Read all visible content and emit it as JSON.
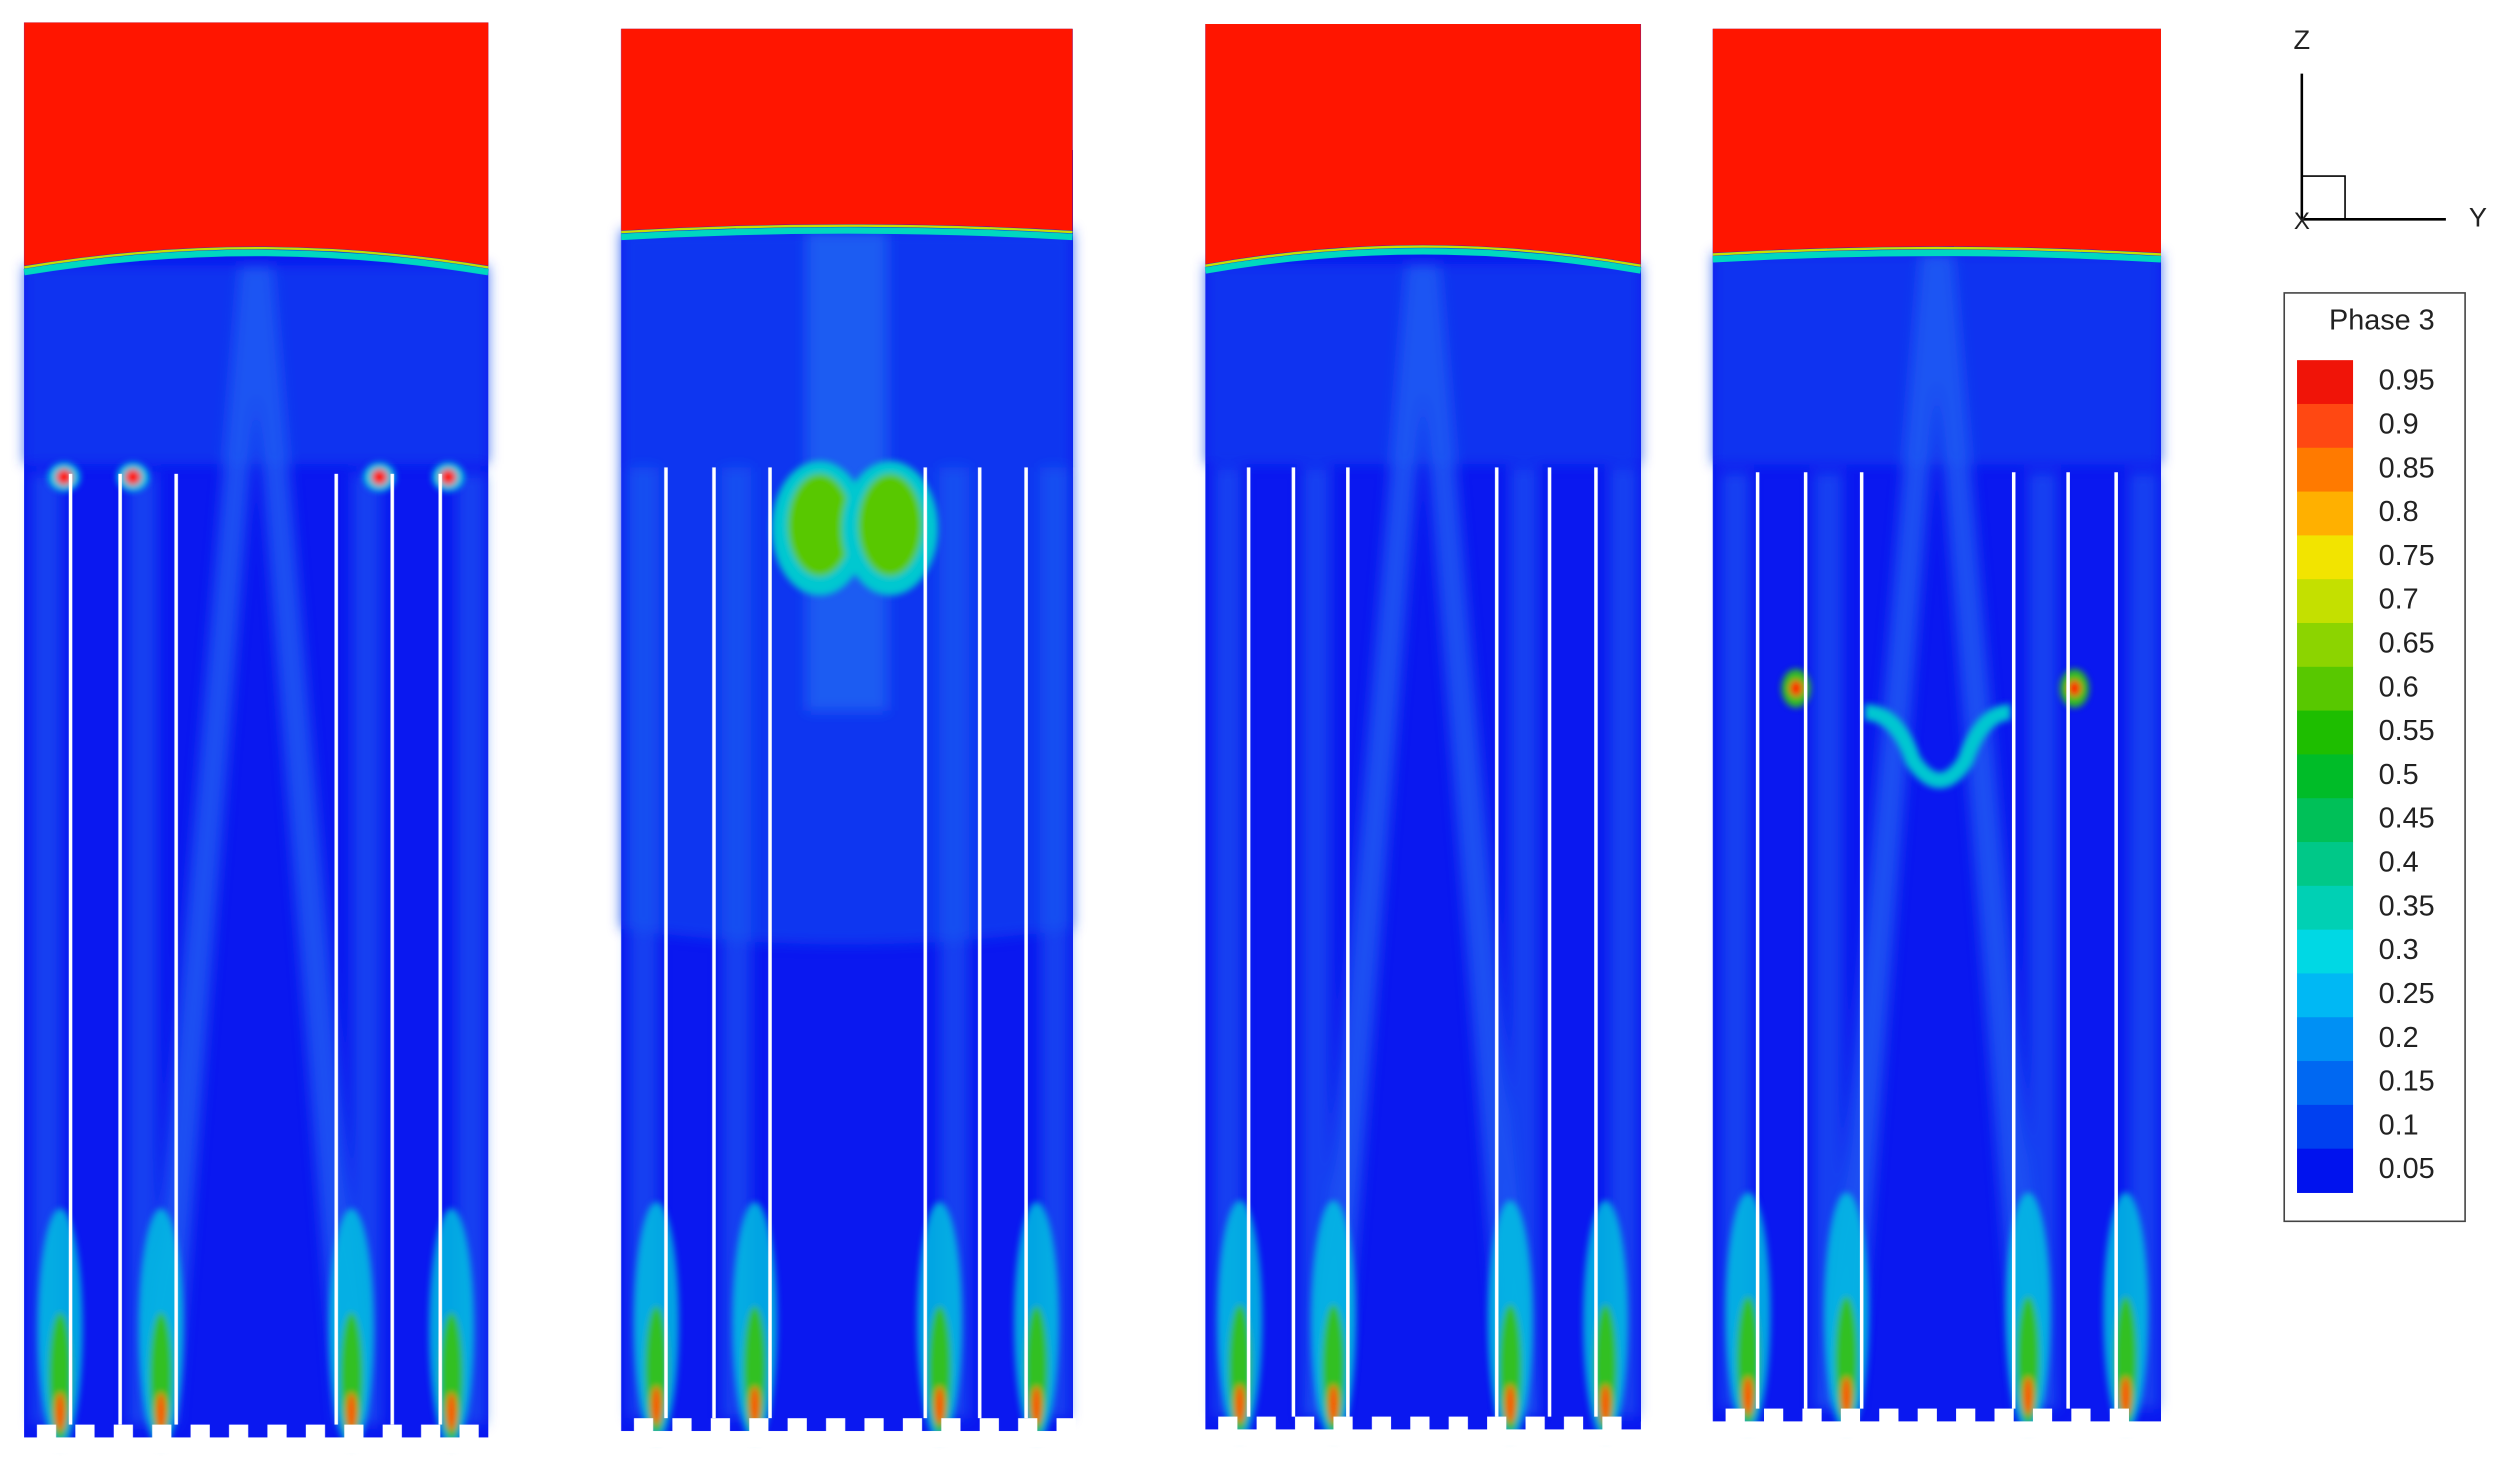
{
  "axes": {
    "z": "Z",
    "y": "Y",
    "x": "X"
  },
  "legend": {
    "title": "Phase 3",
    "levels": [
      {
        "value": 0.95,
        "color": "#f01408"
      },
      {
        "value": 0.9,
        "color": "#ff4812"
      },
      {
        "value": 0.85,
        "color": "#ff7a00"
      },
      {
        "value": 0.8,
        "color": "#ffb000"
      },
      {
        "value": 0.75,
        "color": "#f2e400"
      },
      {
        "value": 0.7,
        "color": "#c4e000"
      },
      {
        "value": 0.65,
        "color": "#8cd400"
      },
      {
        "value": 0.6,
        "color": "#58c800"
      },
      {
        "value": 0.55,
        "color": "#1ebe00"
      },
      {
        "value": 0.5,
        "color": "#00bc28"
      },
      {
        "value": 0.45,
        "color": "#00c058"
      },
      {
        "value": 0.4,
        "color": "#00c888"
      },
      {
        "value": 0.35,
        "color": "#00d0b4"
      },
      {
        "value": 0.3,
        "color": "#00d8e4"
      },
      {
        "value": 0.25,
        "color": "#00b8f4"
      },
      {
        "value": 0.2,
        "color": "#0090f4"
      },
      {
        "value": 0.15,
        "color": "#0068f2"
      },
      {
        "value": 0.1,
        "color": "#0040f0"
      },
      {
        "value": 0.05,
        "color": "#0012ee"
      }
    ]
  }
}
